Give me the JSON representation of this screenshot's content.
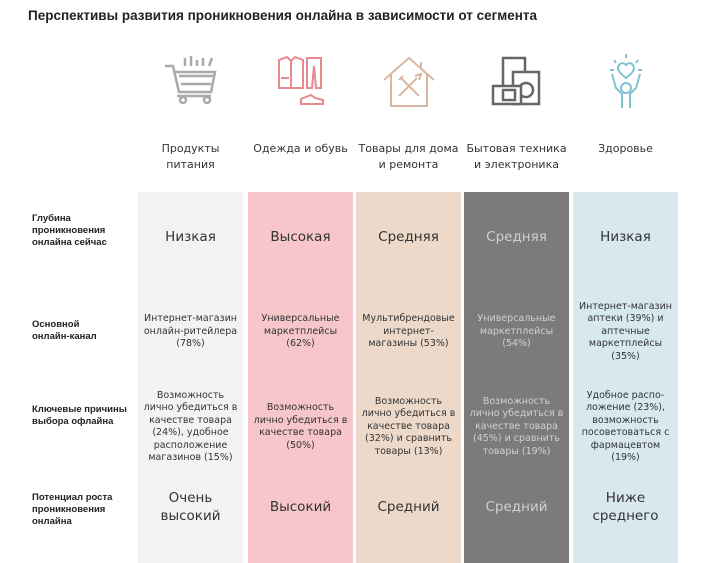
{
  "title": "Перспективы развития проникновения онлайна в зависимости от сегмента",
  "row_labels": [
    "Глубина проникновения онлайна сейчас",
    "Основной онлайн-канал",
    "Ключевые причины выбора офлайна",
    "Потенциал роста проникновения онлайна"
  ],
  "segments": [
    {
      "name": "Продукты питания",
      "icon": "shopping-cart-icon",
      "color": "#f3f3f1",
      "text_color": "#333333",
      "depth": "Низкая",
      "channel": "Интернет-магазин онлайн-ритейлера (78%)",
      "reasons": "Возможность лично убедиться в качестве товара (24%), удобное расположение магазинов (15%)",
      "potential": "Очень высокий"
    },
    {
      "name": "Одежда и обувь",
      "icon": "clothing-icon",
      "color": "#f6c6ca",
      "text_color": "#333333",
      "depth": "Высокая",
      "channel": "Универсальные маркетплейсы (62%)",
      "reasons": "Возможность лично убедиться в качестве товара (50%)",
      "potential": "Высокий"
    },
    {
      "name": "Товары для дома и ремонта",
      "icon": "house-tools-icon",
      "color": "#ecd9c9",
      "text_color": "#333333",
      "depth": "Средняя",
      "channel": "Мультибрендовые интернет-магазины (53%)",
      "reasons": "Возможность лично убедиться в качестве товара (32%) и сравнить товары (13%)",
      "potential": "Средний"
    },
    {
      "name": "Бытовая техника и электроника",
      "icon": "appliances-icon",
      "color": "#7b7b7b",
      "text_color": "#d0d0d0",
      "depth": "Средняя",
      "channel": "Универсальные маркетплейсы (54%)",
      "reasons": "Возможность лично убедиться в качестве товара (45%) и сравнить товары (19%)",
      "potential": "Средний"
    },
    {
      "name": "Здоровье",
      "icon": "health-heart-icon",
      "color": "#d7e9ef",
      "text_color": "#333333",
      "depth": "Низкая",
      "channel": "Интернет-магазин аптеки (39%) и аптечные маркетплейсы (35%)",
      "reasons": "Удобное распо-ложение (23%), возможность посоветоваться с фармацевтом (19%)",
      "potential": "Ниже среднего"
    }
  ]
}
